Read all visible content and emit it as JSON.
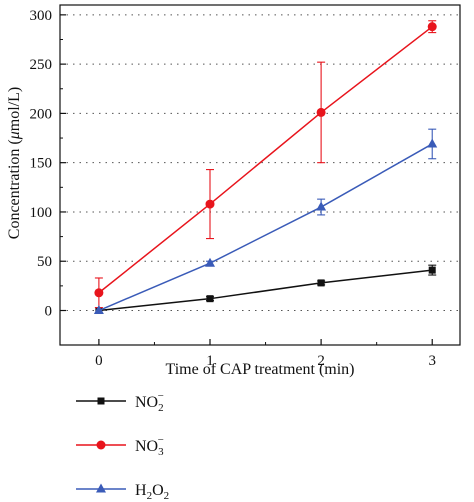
{
  "chart_data": {
    "type": "line",
    "xlabel": "Time of CAP treatment (min)",
    "ylabel_parts": [
      "Concentration (",
      "μ",
      "mol/L)"
    ],
    "x": [
      0,
      1,
      2,
      3
    ],
    "xlim": [
      -0.35,
      3.25
    ],
    "ylim": [
      -35,
      310
    ],
    "xticks": [
      0,
      1,
      2,
      3
    ],
    "yticks": [
      0,
      50,
      100,
      150,
      200,
      250,
      300
    ],
    "grid": "horizontal dotted",
    "legend_position": "below plot",
    "series": [
      {
        "id": "no2",
        "label": {
          "base": "NO",
          "sub": "2",
          "sup": "−"
        },
        "color": "#111111",
        "marker": "square",
        "values": [
          0,
          12,
          28,
          41
        ],
        "errors": [
          0,
          2,
          2,
          5
        ]
      },
      {
        "id": "no3",
        "label": {
          "base": "NO",
          "sub": "3",
          "sup": "−"
        },
        "color": "#e8141c",
        "marker": "circle",
        "values": [
          18,
          108,
          201,
          288
        ],
        "errors": [
          15,
          35,
          51,
          6
        ]
      },
      {
        "id": "h2o2",
        "label": {
          "parts": [
            [
              "H",
              ""
            ],
            [
              "2",
              "sub"
            ],
            [
              "O",
              ""
            ],
            [
              "2",
              "sub"
            ]
          ]
        },
        "color": "#3a5bb8",
        "marker": "triangle",
        "values": [
          0,
          48,
          105,
          169
        ],
        "errors": [
          0,
          2,
          8,
          15
        ]
      }
    ]
  }
}
